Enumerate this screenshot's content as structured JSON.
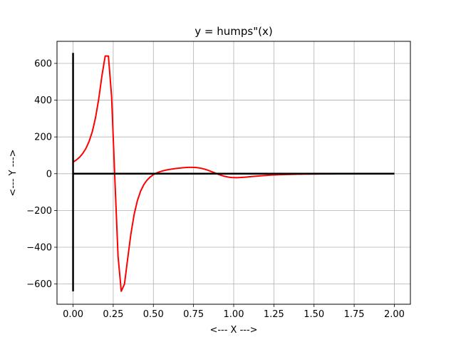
{
  "chart_data": {
    "type": "line",
    "title": "y = humps\"(x)",
    "xlabel": "<--- X --->",
    "ylabel": "<--- Y --->",
    "xlim": [
      -0.1,
      2.1
    ],
    "ylim": [
      -710,
      720
    ],
    "grid": true,
    "x_ticks": [
      0.0,
      0.25,
      0.5,
      0.75,
      1.0,
      1.25,
      1.5,
      1.75,
      2.0
    ],
    "x_tick_labels": [
      "0.00",
      "0.25",
      "0.50",
      "0.75",
      "1.00",
      "1.25",
      "1.50",
      "1.75",
      "2.00"
    ],
    "y_ticks": [
      -600,
      -400,
      -200,
      0,
      200,
      400,
      600
    ],
    "y_tick_labels": [
      "−600",
      "−400",
      "−200",
      "0",
      "200",
      "400",
      "600"
    ],
    "colors": {
      "curve": "#ff0000",
      "reference_lines": "#000000",
      "grid": "#b0b0b0"
    },
    "reference_lines": [
      {
        "orientation": "vertical",
        "x": 0,
        "y_range": [
          -640,
          657
        ]
      },
      {
        "orientation": "horizontal",
        "y": 0,
        "x_range": [
          0,
          2
        ]
      }
    ],
    "series": [
      {
        "x": [
          0.0,
          0.02,
          0.04,
          0.06,
          0.08,
          0.1,
          0.12,
          0.14,
          0.16,
          0.18,
          0.2,
          0.22,
          0.24,
          0.26,
          0.28,
          0.3,
          0.32,
          0.34,
          0.36,
          0.38,
          0.4,
          0.42,
          0.44,
          0.46,
          0.48,
          0.5,
          0.52,
          0.54,
          0.56,
          0.58,
          0.6,
          0.62,
          0.64,
          0.66,
          0.68,
          0.7,
          0.72,
          0.74,
          0.76,
          0.78,
          0.8,
          0.82,
          0.84,
          0.86,
          0.88,
          0.9,
          0.92,
          0.94,
          0.96,
          0.98,
          1.0,
          1.02,
          1.04,
          1.06,
          1.08,
          1.1,
          1.12,
          1.14,
          1.16,
          1.18,
          1.2,
          1.22,
          1.24,
          1.26,
          1.28,
          1.3,
          1.32,
          1.34,
          1.36,
          1.38,
          1.4,
          1.42,
          1.44,
          1.46,
          1.48,
          1.5,
          1.52,
          1.54,
          1.56,
          1.58,
          1.6,
          1.62,
          1.64,
          1.66,
          1.68,
          1.7,
          1.72,
          1.74,
          1.76,
          1.78,
          1.8,
          1.82,
          1.84,
          1.86,
          1.88,
          1.9,
          1.92,
          1.94,
          1.96,
          1.98,
          2.0
        ],
        "y": [
          63.2,
          74.4,
          89.4,
          109.6,
          137.3,
          175.7,
          229.4,
          304.8,
          407.9,
          534.3,
          640.2,
          640.1,
          419.4,
          -23.3,
          -448.2,
          -639.4,
          -600.4,
          -462.5,
          -327.9,
          -222.7,
          -147.8,
          -95.9,
          -60.1,
          -35.3,
          -17.8,
          -5.3,
          3.8,
          10.6,
          15.8,
          19.9,
          23.2,
          26.0,
          28.4,
          30.4,
          32.1,
          33.5,
          34.4,
          34.7,
          34.0,
          32.2,
          29.0,
          24.5,
          18.8,
          12.2,
          5.2,
          -1.8,
          -8.1,
          -13.4,
          -17.4,
          -20.1,
          -21.4,
          -21.6,
          -20.9,
          -19.7,
          -18.2,
          -16.5,
          -14.9,
          -13.3,
          -11.8,
          -10.5,
          -9.3,
          -8.2,
          -7.3,
          -6.5,
          -5.8,
          -5.1,
          -4.6,
          -4.1,
          -3.7,
          -3.3,
          -3.0,
          -2.7,
          -2.4,
          -2.2,
          -2.0,
          -1.8,
          -1.7,
          -1.5,
          -1.4,
          -1.3,
          -1.2,
          -1.1,
          -1.0,
          -1.0,
          -0.9,
          -0.8,
          -0.8,
          -0.7,
          -0.7,
          -0.6,
          -0.6,
          -0.6,
          -0.5,
          -0.5,
          -0.5,
          -0.4,
          -0.4,
          -0.4,
          -0.4,
          -0.3,
          -0.3
        ]
      }
    ]
  }
}
